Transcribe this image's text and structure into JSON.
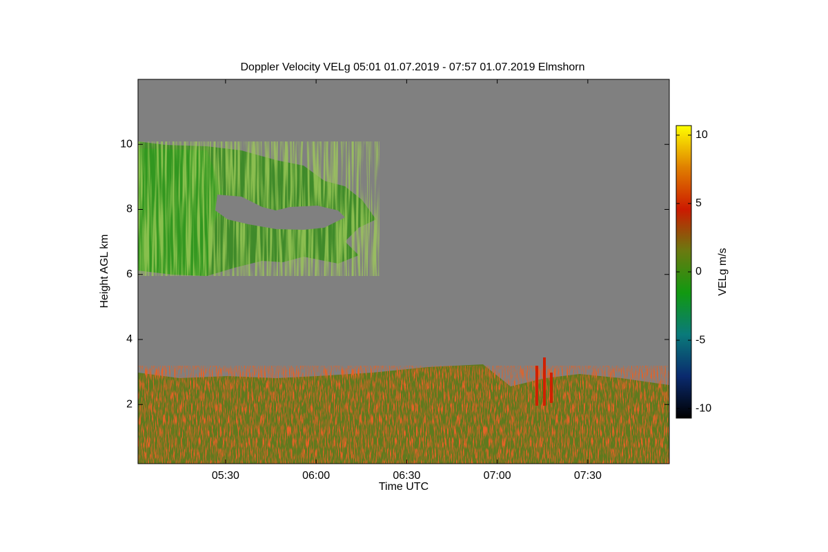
{
  "chart_data": {
    "type": "heatmap",
    "title": "Doppler Velocity VELg   05:01 01.07.2019 - 07:57 01.07.2019 Elmshorn",
    "x_label": "Time UTC",
    "y_label": "Height AGL km",
    "colorbar_label": "VELg m/s",
    "xlim": [
      301,
      477
    ],
    "xticks": [
      {
        "value": 330,
        "label": "05:30"
      },
      {
        "value": 360,
        "label": "06:00"
      },
      {
        "value": 390,
        "label": "06:30"
      },
      {
        "value": 420,
        "label": "07:00"
      },
      {
        "value": 450,
        "label": "07:30"
      }
    ],
    "ylim": [
      0.18,
      12
    ],
    "yticks": [
      2,
      4,
      6,
      8,
      10
    ],
    "clim": [
      -10.7,
      10.7
    ],
    "cticks": [
      -10,
      -5,
      0,
      5,
      10
    ],
    "colormap": [
      "#000000",
      "#0a2a6e",
      "#0a7a7a",
      "#119911",
      "#6a7a10",
      "#cc1a00",
      "#e08000",
      "#ffff00"
    ],
    "background_color": "#808080"
  }
}
